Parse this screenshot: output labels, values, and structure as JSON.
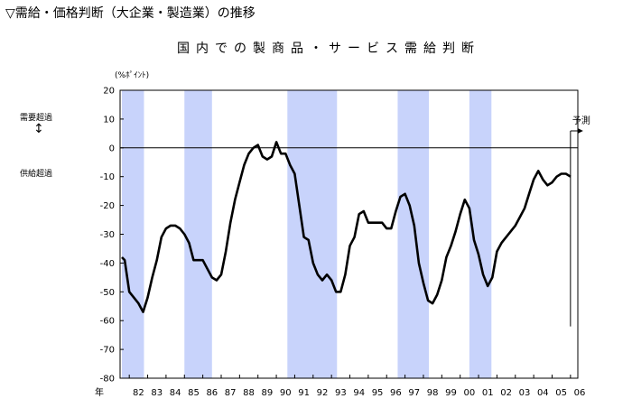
{
  "heading": "▽需給・価格判断（大企業・製造業）の推移",
  "annotations": {
    "demand_over": "需要超過",
    "supply_over": "供給超過",
    "arrow": "↕",
    "forecast": "予測"
  },
  "colors": {
    "line": "#000000",
    "recession_band": "#c8d3fb",
    "axis": "#000000"
  },
  "chart_data": {
    "type": "line",
    "title": "国内での製商品・サービス需給判断",
    "ylabel": "(%ﾎﾟｲﾝﾄ)",
    "xlabel": "年",
    "ylim": [
      -80,
      20
    ],
    "yticks": [
      20,
      10,
      0,
      -10,
      -20,
      -30,
      -40,
      -50,
      -60,
      -70,
      -80
    ],
    "xlim": [
      81.5,
      106.4
    ],
    "xtick_labels": [
      "82",
      "83",
      "84",
      "85",
      "86",
      "87",
      "88",
      "89",
      "90",
      "91",
      "92",
      "93",
      "94",
      "95",
      "96",
      "97",
      "98",
      "99",
      "00",
      "01",
      "02",
      "03",
      "04",
      "05",
      "06"
    ],
    "grid": false,
    "zero_line": true,
    "shaded_periods": [
      [
        81.6,
        82.8
      ],
      [
        85.0,
        86.5
      ],
      [
        90.6,
        93.3
      ],
      [
        96.6,
        98.3
      ],
      [
        100.5,
        101.7
      ]
    ],
    "forecast_marker_x": 106.0,
    "series": [
      {
        "x": [
          81.6,
          81.75,
          82.0,
          82.25,
          82.5,
          82.75,
          83.0,
          83.25,
          83.5,
          83.75,
          84.0,
          84.25,
          84.5,
          84.75,
          85.0,
          85.25,
          85.5,
          85.75,
          86.0,
          86.25,
          86.5,
          86.75,
          87.0,
          87.25,
          87.5,
          87.75,
          88.0,
          88.25,
          88.5,
          88.75,
          89.0,
          89.25,
          89.5,
          89.75,
          90.0,
          90.25,
          90.5,
          90.75,
          91.0,
          91.25,
          91.5,
          91.75,
          92.0,
          92.25,
          92.5,
          92.75,
          93.0,
          93.25,
          93.5,
          93.75,
          94.0,
          94.25,
          94.5,
          94.75,
          95.0,
          95.25,
          95.5,
          95.75,
          96.0,
          96.25,
          96.5,
          96.75,
          97.0,
          97.25,
          97.5,
          97.75,
          98.0,
          98.25,
          98.5,
          98.75,
          99.0,
          99.25,
          99.5,
          99.75,
          100.0,
          100.25,
          100.5,
          100.75,
          101.0,
          101.25,
          101.5,
          101.75,
          102.0,
          102.25,
          102.5,
          102.75,
          103.0,
          103.25,
          103.5,
          103.75,
          104.0,
          104.25,
          104.5,
          104.75,
          105.0,
          105.25,
          105.5,
          105.75,
          106.0
        ],
        "values": [
          -38,
          -39,
          -50,
          -52,
          -54,
          -57,
          -52,
          -45,
          -39,
          -31,
          -28,
          -27,
          -27,
          -28,
          -30,
          -33,
          -39,
          -39,
          -39,
          -42,
          -45,
          -46,
          -44,
          -36,
          -26,
          -18,
          -12,
          -6,
          -2,
          0,
          1,
          -3,
          -4,
          -3,
          2,
          -2,
          -2,
          -6,
          -9,
          -20,
          -31,
          -32,
          -40,
          -44,
          -46,
          -44,
          -46,
          -50,
          -50,
          -44,
          -34,
          -31,
          -23,
          -22,
          -26,
          -26,
          -26,
          -26,
          -28,
          -28,
          -22,
          -17,
          -16,
          -20,
          -27,
          -40,
          -47,
          -53,
          -54,
          -51,
          -46,
          -38,
          -34,
          -29,
          -23,
          -18,
          -21,
          -32,
          -37,
          -44,
          -48,
          -45,
          -36,
          -33,
          -31,
          -29,
          -27,
          -24,
          -21,
          -16,
          -11,
          -8,
          -11,
          -13,
          -12,
          -10,
          -9,
          -9,
          -10
        ]
      }
    ]
  }
}
